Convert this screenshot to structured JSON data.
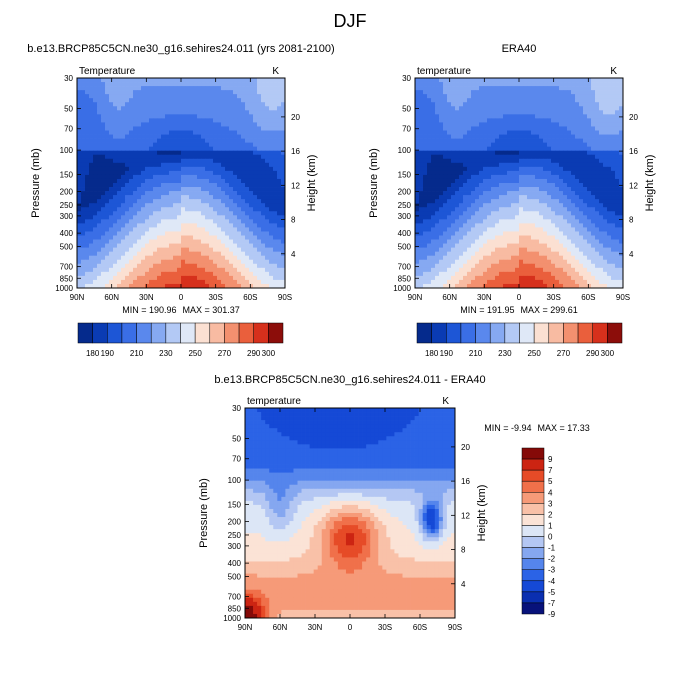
{
  "figure_title": "DJF",
  "chart_data": [
    {
      "type": "heatmap",
      "panel": "top-left",
      "title": "b.e13.BRCP85C5CN.ne30_g16.sehires24.011 (yrs 2081-2100)",
      "var_label": "Temperature",
      "units": "K",
      "ylabel": "Pressure (mb)",
      "ylabel_right": "Height (km)",
      "x_ticks": [
        "90N",
        "60N",
        "30N",
        "0",
        "30S",
        "60S",
        "90S"
      ],
      "p_ticks": [
        "30",
        "50",
        "70",
        "100",
        "150",
        "200",
        "250",
        "300",
        "400",
        "500",
        "700",
        "850",
        "1000"
      ],
      "h_ticks": [
        "4",
        "8",
        "12",
        "16",
        "20"
      ],
      "min_label": "MIN = 190.96",
      "max_label": "MAX = 301.37",
      "colorbar_ticks": [
        "180",
        "190",
        "210",
        "230",
        "250",
        "270",
        "290",
        "300"
      ],
      "levels": [
        180,
        190,
        200,
        210,
        220,
        230,
        240,
        250,
        260,
        270,
        280,
        290,
        300
      ],
      "field": "clim"
    },
    {
      "type": "heatmap",
      "panel": "top-right",
      "title": "ERA40",
      "var_label": "temperature",
      "units": "K",
      "ylabel": "Pressure (mb)",
      "ylabel_right": "Height (km)",
      "x_ticks": [
        "90N",
        "60N",
        "30N",
        "0",
        "30S",
        "60S",
        "90S"
      ],
      "p_ticks": [
        "30",
        "50",
        "70",
        "100",
        "150",
        "200",
        "250",
        "300",
        "400",
        "500",
        "700",
        "850",
        "1000"
      ],
      "h_ticks": [
        "4",
        "8",
        "12",
        "16",
        "20"
      ],
      "min_label": "MIN = 191.95",
      "max_label": "MAX = 299.61",
      "colorbar_ticks": [
        "180",
        "190",
        "210",
        "230",
        "250",
        "270",
        "290",
        "300"
      ],
      "levels": [
        180,
        190,
        200,
        210,
        220,
        230,
        240,
        250,
        260,
        270,
        280,
        290,
        300
      ],
      "field": "clim"
    },
    {
      "type": "heatmap",
      "panel": "bottom",
      "title": "b.e13.BRCP85C5CN.ne30_g16.sehires24.011 - ERA40",
      "var_label": "temperature",
      "units": "K",
      "ylabel": "Pressure (mb)",
      "ylabel_right": "Height (km)",
      "x_ticks": [
        "90N",
        "60N",
        "30N",
        "0",
        "30S",
        "60S",
        "90S"
      ],
      "p_ticks": [
        "30",
        "50",
        "70",
        "100",
        "150",
        "200",
        "250",
        "300",
        "400",
        "500",
        "700",
        "850",
        "1000"
      ],
      "h_ticks": [
        "4",
        "8",
        "12",
        "16",
        "20"
      ],
      "min_label": "MIN =  -9.94",
      "max_label": "MAX =  17.33",
      "colorbar_ticks": [
        "9",
        "7",
        "5",
        "4",
        "3",
        "2",
        "1",
        "0",
        "-1",
        "-2",
        "-3",
        "-4",
        "-5",
        "-7",
        "-9"
      ],
      "levels": [
        -9,
        -7,
        -5,
        -4,
        -3,
        -2,
        -1,
        0,
        1,
        2,
        3,
        4,
        5,
        7,
        9
      ],
      "field": "diff"
    }
  ],
  "colors": {
    "clim_palette": [
      "#052a8c",
      "#0a3bb3",
      "#1d56d6",
      "#3a6ee6",
      "#5a88ed",
      "#86a9f2",
      "#b3c9f5",
      "#dfe8f7",
      "#fbe0d2",
      "#f8bba2",
      "#f3906f",
      "#ea5f3c",
      "#d6301c",
      "#8c0d0a"
    ],
    "diff_palette": [
      "#08127a",
      "#0a2fb0",
      "#1549d6",
      "#2b63e6",
      "#5585ec",
      "#85a7f0",
      "#b4c7f3",
      "#dce6f6",
      "#fbe3d6",
      "#f9c1a8",
      "#f69a78",
      "#f0704a",
      "#e64b27",
      "#cc2412",
      "#850a08"
    ]
  }
}
